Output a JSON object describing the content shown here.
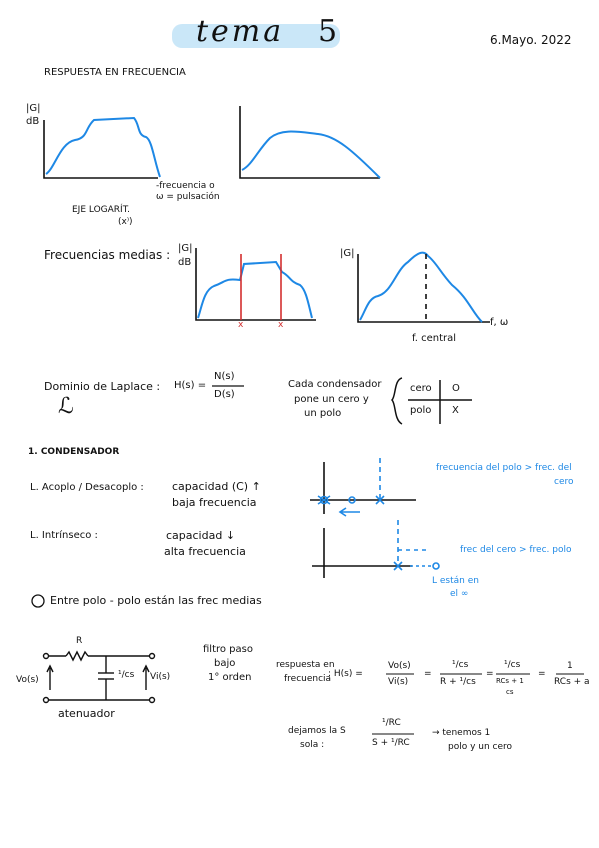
{
  "header": {
    "title": "tema",
    "number": "5",
    "date": "6.Mayo. 2022"
  },
  "section1": {
    "heading": "RESPUESTA EN FRECUENCIA",
    "axis_g": "|G|",
    "axis_db": "dB",
    "freq_label_1": "-frecuencia o",
    "freq_label_2": "ω = pulsación",
    "eje_1": "EJE LOGARÍT.",
    "eje_2": "(x⁾)"
  },
  "section2": {
    "label": "Frecuencias medias :",
    "axis_g": "|G|",
    "axis_db": "dB",
    "mark_x": "x",
    "fcentral": "f. central",
    "axis_fw": "f, ω"
  },
  "section3": {
    "label": "Dominio de Laplace :",
    "symbol": "ℒ",
    "h_left": "H(s) =",
    "num": "N(s)",
    "den": "D(s)",
    "cap_text_1": "Cada condensador",
    "cap_text_2": "pone un cero y",
    "cap_text_3": "un polo",
    "table": {
      "r1c1": "cero",
      "r1c2": "O",
      "r2c1": "polo",
      "r2c2": "X"
    }
  },
  "section4": {
    "heading": "1. CONDENSADOR",
    "acoplo": "L. Acoplo / Desacoplo :",
    "acoplo_d1": "capacidad (C) ↑",
    "acoplo_d2": "baja frecuencia",
    "intrinseco": "L. Intrínseco :",
    "intr_d1": "capacidad ↓",
    "intr_d2": "alta frecuencia",
    "note_top_1": "frecuencia del polo > frec. del",
    "note_top_2": "cero",
    "note_bot": "frec del cero > frec. polo",
    "estan_1": "L están en",
    "estan_2": "el ∞",
    "polo_polo": "Entre polo - polo están las frec medias"
  },
  "section5": {
    "R": "R",
    "Vo": "Vo(s)",
    "cap": "¹/cs",
    "Vi": "Vi(s)",
    "atenuador": "atenuador",
    "filtro_1": "filtro paso",
    "filtro_2": "bajo",
    "filtro_3": "1° orden",
    "resp_1": "respuesta en",
    "resp_2": "frecuencia",
    "H": ": H(s) =",
    "f1n": "Vo(s)",
    "f1d": "Vi(s)",
    "f2n": "¹/cs",
    "f2d": "R + ¹/cs",
    "f3n": "¹/cs",
    "f3d": "RCs + 1",
    "f3dd": "cs",
    "f4n": "1",
    "f4d": "RCs + a",
    "dejamos_1": "dejamos la S",
    "dejamos_2": "sola :",
    "g1n": "¹/RC",
    "g1d": "S + ¹/RC",
    "tenemos_1": "→ tenemos 1",
    "tenemos_2": "polo y un cero"
  },
  "colors": {
    "blue": "#1e88e5",
    "red": "#d32f2f",
    "highlight": "#9fd3f3"
  }
}
